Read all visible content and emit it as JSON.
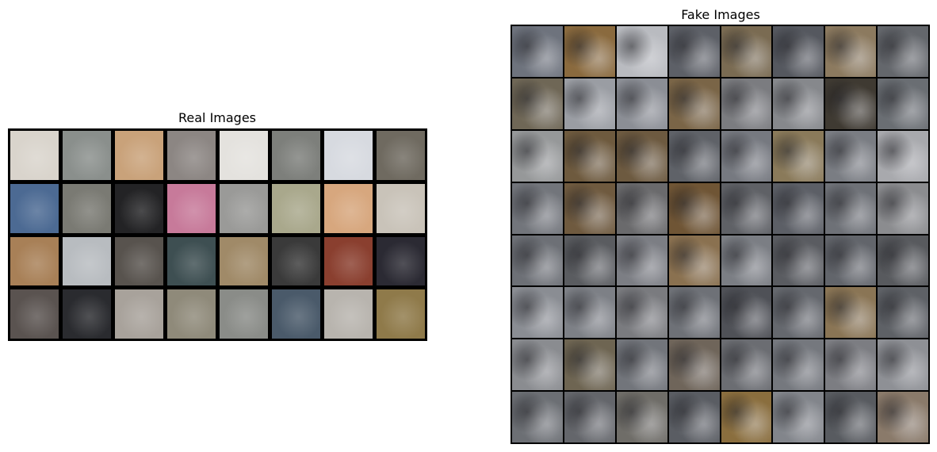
{
  "real": {
    "title": "Real Images",
    "rows": 4,
    "cols": 8,
    "tiles": [
      "#d9d4cc",
      "#8a8f8c",
      "#c9a27a",
      "#8c8683",
      "#e4e2de",
      "#7d7f7b",
      "#d7dae0",
      "#6f6a60",
      "#4c6a93",
      "#7a7a73",
      "#232325",
      "#c77a9a",
      "#9a9a98",
      "#a9a88c",
      "#d7a77e",
      "#c9c3b9",
      "#a88057",
      "#b8bcc0",
      "#58534e",
      "#3e4f52",
      "#a08a68",
      "#3a3a3a",
      "#8a3f2f",
      "#2b2a33",
      "#5a5350",
      "#2a2b2f",
      "#a8a29b",
      "#8f8a7a",
      "#8a8c88",
      "#4a5a6a",
      "#b8b4ae",
      "#8f7a4a"
    ]
  },
  "fake": {
    "title": "Fake Images",
    "rows": 8,
    "cols": 8,
    "tiles": [
      "#6e737d",
      "#8a6a3e",
      "#b9bbc0",
      "#5d6067",
      "#7a6b52",
      "#55585f",
      "#8c7a5f",
      "#64676c",
      "#6f6756",
      "#9a9da3",
      "#8b8e95",
      "#7a6547",
      "#7b7c80",
      "#86888c",
      "#3f3a32",
      "#6a6e73",
      "#969899",
      "#6e5a3e",
      "#6d5a40",
      "#5f6268",
      "#767980",
      "#8a7a5a",
      "#7a7d83",
      "#a8a9ad",
      "#72757b",
      "#6f5a3f",
      "#6a6a6c",
      "#6f5535",
      "#5f6166",
      "#5c5f66",
      "#6e7177",
      "#8b8c8f",
      "#6d7076",
      "#5a5c60",
      "#7c7e84",
      "#8a7150",
      "#7b7e84",
      "#5a5c61",
      "#62656b",
      "#585a5e",
      "#8a8d93",
      "#7d8086",
      "#7a7b7f",
      "#6e7177",
      "#4f5157",
      "#65686e",
      "#8a7555",
      "#5e6166",
      "#8a8c90",
      "#6e6552",
      "#72757b",
      "#6f655a",
      "#6b6d72",
      "#75787e",
      "#7c7d82",
      "#8e9095",
      "#6c6f74",
      "#64666b",
      "#6f6d68",
      "#5a5d63",
      "#8a6e3e",
      "#82858b",
      "#585b60",
      "#8a7a6a"
    ]
  }
}
